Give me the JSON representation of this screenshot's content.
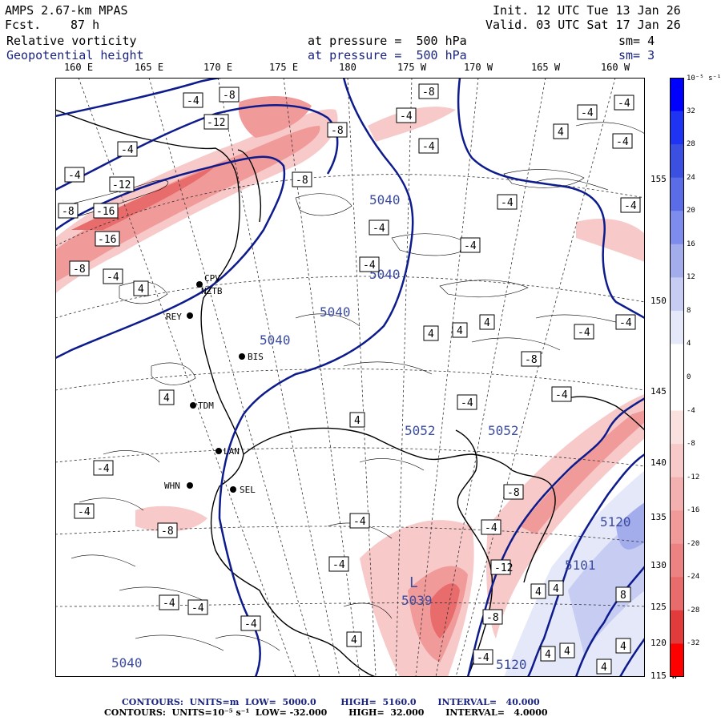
{
  "header": {
    "model": "AMPS 2.67-km MPAS",
    "fcst_label": "Fcst.",
    "fcst_value": "87 h",
    "init": "Init. 12 UTC Tue 13 Jan 26",
    "valid": "Valid. 03 UTC Sat 17 Jan 26",
    "field1": "Relative vorticity",
    "field2": "Geopotential height",
    "pressure1": "at pressure =  500 hPa",
    "pressure2": "at pressure =  500 hPa",
    "sm1": "sm= 4",
    "sm2": "sm= 3"
  },
  "map": {
    "longitude_labels": [
      "160 E",
      "165 E",
      "170 E",
      "175 E",
      "180",
      "175 W",
      "170 W",
      "165 W",
      "160 W"
    ],
    "latitude_labels": [
      "155 W",
      "150 W",
      "145 W",
      "140 W",
      "135 W",
      "130 W",
      "125 W",
      "120 W",
      "115 W"
    ],
    "stations": [
      {
        "name": "CPV"
      },
      {
        "name": "NZTB"
      },
      {
        "name": "REY"
      },
      {
        "name": "BIS"
      },
      {
        "name": "TDM"
      },
      {
        "name": "LAN"
      },
      {
        "name": "WHN"
      },
      {
        "name": "SEL"
      }
    ],
    "height_labels": [
      "5040",
      "5040",
      "5040",
      "5040",
      "5040",
      "5052",
      "5052",
      "5039",
      "5120",
      "5120",
      "5101"
    ],
    "lows": [
      "L"
    ],
    "vorticity_labels": [
      "-4",
      "-8",
      "-12",
      "-16",
      "4",
      "8"
    ],
    "colors": {
      "height_contour": "#0d1b8c",
      "negative_vorticity": "#e23b3b",
      "positive_vorticity": "#3b4fe0",
      "coast": "#000000"
    }
  },
  "colorbar": {
    "unit": "10⁻⁵ s⁻¹",
    "levels": [
      "32",
      "28",
      "24",
      "20",
      "16",
      "12",
      "8",
      "4",
      "0",
      "-4",
      "-8",
      "-12",
      "-16",
      "-20",
      "-24",
      "-28",
      "-32"
    ]
  },
  "footer": {
    "line1": "CONTOURS:  UNITS=m  LOW=  5000.0        HIGH=  5160.0       INTERVAL=   40.000",
    "line2": "CONTOURS:  UNITS=10⁻⁵ s⁻¹  LOW= -32.000       HIGH=  32.000       INTERVAL=   4.0000"
  }
}
